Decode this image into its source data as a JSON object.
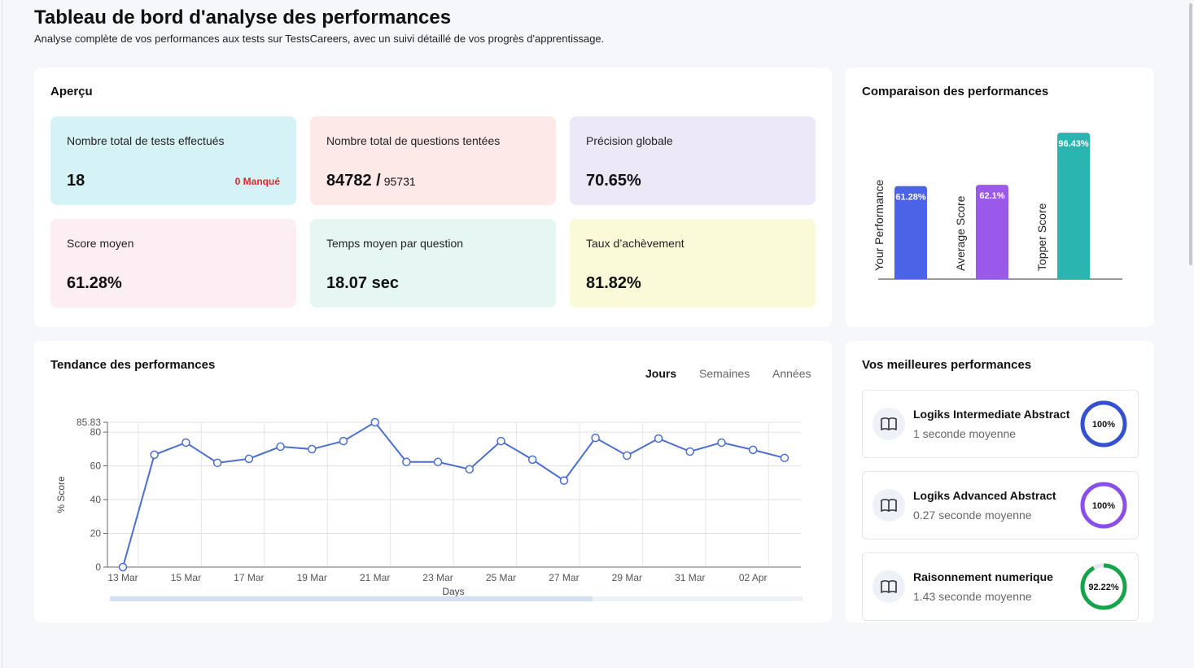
{
  "header": {
    "title": "Tableau de bord d'analyse des performances",
    "subtitle": "Analyse complète de vos performances aux tests sur TestsCareers, avec un suivi détaillé de vos progrès d'apprentissage."
  },
  "overview": {
    "title": "Aperçu",
    "cards": [
      {
        "label": "Nombre total de tests effectués",
        "value": "18",
        "note": "0 Manqué",
        "color": "#d5f3f6"
      },
      {
        "label": "Nombre total de questions tentées",
        "value": "84782 /",
        "note": "95731",
        "color": "#fde9e8"
      },
      {
        "label": "Précision globale",
        "value": "70.65%",
        "color": "#ece8f7"
      },
      {
        "label": "Score moyen",
        "value": "61.28%",
        "color": "#fdeef3"
      },
      {
        "label": "Temps moyen par question",
        "value": "18.07 sec",
        "color": "#e6f6f3"
      },
      {
        "label": "Taux d’achèvement",
        "value": "81.82%",
        "color": "#fafad9"
      }
    ]
  },
  "comparison": {
    "title": "Comparaison des performances",
    "chart_data": {
      "type": "bar",
      "categories": [
        "Your Performance",
        "Average Score",
        "Topper Score"
      ],
      "values": [
        61.28,
        62.1,
        96.43
      ],
      "value_labels": [
        "61.28%",
        "62.1%",
        "96.43%"
      ],
      "colors": [
        "#4b63e6",
        "#9b59ec",
        "#2bb5b0"
      ]
    }
  },
  "trend": {
    "title": "Tendance des performances",
    "tabs": [
      "Jours",
      "Semaines",
      "Années"
    ],
    "chart_data": {
      "type": "line",
      "x_label": "Days",
      "y_label": "% Score",
      "categories": [
        "13 Mar",
        null,
        "15 Mar",
        null,
        "17 Mar",
        null,
        "19 Mar",
        null,
        "21 Mar",
        null,
        "23 Mar",
        null,
        "25 Mar",
        null,
        "27 Mar",
        null,
        "29 Mar",
        null,
        "31 Mar",
        null,
        "02 Apr",
        null
      ],
      "values": [
        0,
        66.6,
        73.8,
        61.8,
        64.2,
        71.4,
        69.9,
        74.7,
        85.83,
        62.3,
        62.3,
        58.0,
        74.7,
        63.7,
        51.3,
        76.6,
        66.1,
        76.2,
        68.5,
        73.8,
        69.5,
        64.7
      ],
      "color": "#4a6fd0",
      "ylim": [
        0,
        85.83
      ],
      "yticks": [
        0,
        20,
        40,
        60,
        80,
        85.83
      ],
      "grid": true
    }
  },
  "best": {
    "title": "Vos meilleures performances",
    "items": [
      {
        "name": "Logiks Intermediate Abstract",
        "detail": "1 seconde moyenne",
        "value": 100,
        "value_label": "100%",
        "color": "#3451d1"
      },
      {
        "name": "Logiks Advanced Abstract",
        "detail": "0.27 seconde moyenne",
        "value": 100,
        "value_label": "100%",
        "color": "#8a4fe8"
      },
      {
        "name": "Raisonnement numerique",
        "detail": "1.43 seconde moyenne",
        "value": 92.22,
        "value_label": "92.22%",
        "color": "#16a34a"
      }
    ]
  }
}
